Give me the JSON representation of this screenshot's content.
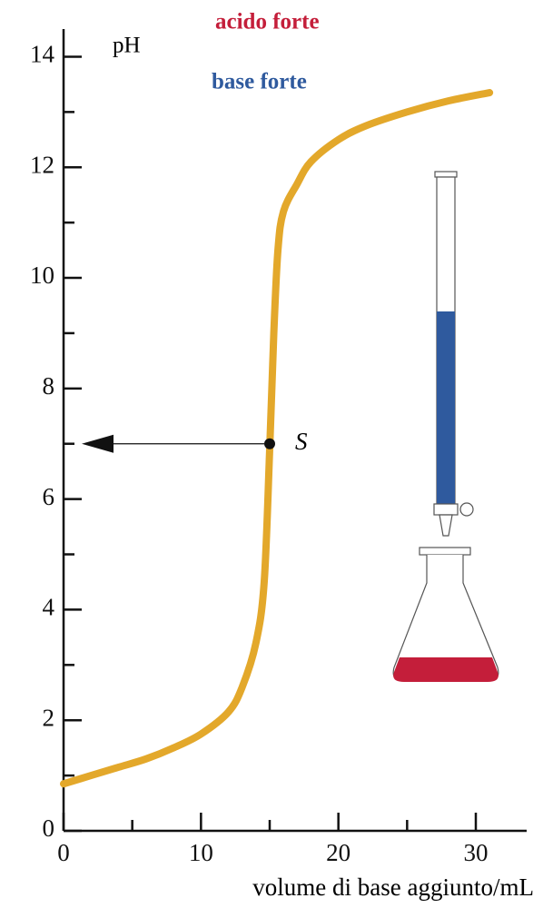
{
  "chart_data": {
    "type": "line",
    "legend": [
      {
        "label": "acido forte",
        "color": "#c41e3a"
      },
      {
        "label": "base forte",
        "color": "#2f5a9e"
      }
    ],
    "ylabel": "pH",
    "xlabel": "volume di base aggiunto/mL",
    "xlim": [
      0,
      33.7
    ],
    "ylim": [
      0,
      14.5
    ],
    "xticks": [
      0,
      10,
      20,
      30
    ],
    "xminorticks": [
      5,
      15,
      25
    ],
    "yticks": [
      0,
      2,
      4,
      6,
      8,
      10,
      12,
      14
    ],
    "yminorticks": [
      1,
      3,
      5,
      7,
      9,
      11,
      13
    ],
    "series": [
      {
        "color": "#e3a82b",
        "x": [
          0,
          2,
          4,
          6,
          8,
          10,
          12,
          13,
          14,
          14.6,
          15,
          15.3,
          15.6,
          16,
          17,
          18,
          20,
          22,
          25,
          28,
          31
        ],
        "values": [
          0.85,
          1.0,
          1.15,
          1.3,
          1.5,
          1.75,
          2.15,
          2.6,
          3.4,
          4.5,
          6.9,
          9,
          10.5,
          11.2,
          11.7,
          12.1,
          12.5,
          12.75,
          13.0,
          13.2,
          13.35
        ]
      }
    ],
    "point": {
      "x": 15,
      "y": 7,
      "label": "S"
    }
  }
}
